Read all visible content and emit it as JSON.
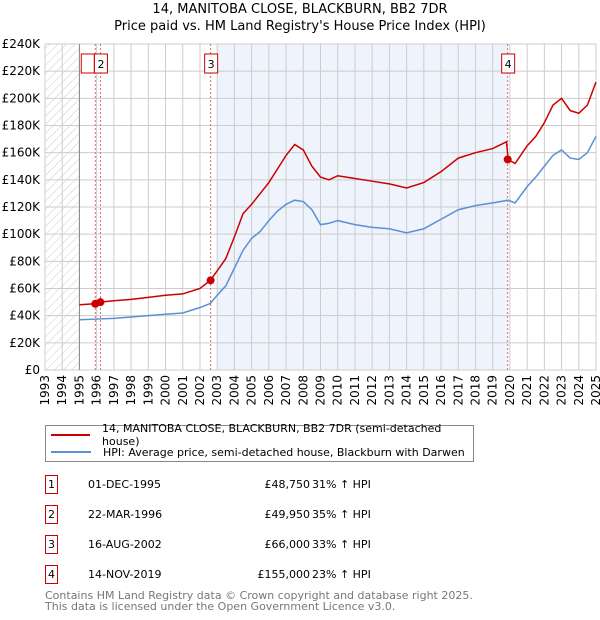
{
  "header": {
    "title": "14, MANITOBA CLOSE, BLACKBURN, BB2 7DR",
    "subtitle": "Price paid vs. HM Land Registry's House Price Index (HPI)"
  },
  "chart_data": {
    "type": "line",
    "title": "14, MANITOBA CLOSE, BLACKBURN, BB2 7DR",
    "subtitle": "Price paid vs. HM Land Registry's House Price Index (HPI)",
    "xlim": [
      1993,
      2025
    ],
    "ylim": [
      0,
      240000
    ],
    "x_ticks": [
      "1993",
      "1994",
      "1995",
      "1996",
      "1997",
      "1998",
      "1999",
      "2000",
      "2001",
      "2002",
      "2003",
      "2004",
      "2005",
      "2006",
      "2007",
      "2008",
      "2009",
      "2010",
      "2011",
      "2012",
      "2013",
      "2014",
      "2015",
      "2016",
      "2017",
      "2018",
      "2019",
      "2020",
      "2021",
      "2022",
      "2023",
      "2024",
      "2025"
    ],
    "y_ticks": [
      "£0",
      "£20K",
      "£40K",
      "£60K",
      "£80K",
      "£100K",
      "£120K",
      "£140K",
      "£160K",
      "£180K",
      "£200K",
      "£220K",
      "£240K"
    ],
    "grid": true,
    "series": [
      {
        "name": "14, MANITOBA CLOSE, BLACKBURN, BB2 7DR (semi-detached house)",
        "color": "#cc0000",
        "x": [
          1995,
          1995.9,
          1996.2,
          1997,
          1998,
          1999,
          2000,
          2001,
          2002,
          2002.6,
          2003,
          2003.5,
          2004,
          2004.5,
          2005,
          2005.5,
          2006,
          2006.5,
          2007,
          2007.5,
          2008,
          2008.5,
          2009,
          2009.5,
          2010,
          2011,
          2012,
          2013,
          2014,
          2015,
          2016,
          2017,
          2018,
          2019,
          2019.8,
          2019.9,
          2020.3,
          2021,
          2021.5,
          2022,
          2022.5,
          2023,
          2023.5,
          2024,
          2024.5,
          2025
        ],
        "y": [
          48000,
          48750,
          49950,
          51000,
          52000,
          53500,
          55000,
          56000,
          60000,
          66000,
          73000,
          82000,
          98000,
          115000,
          122000,
          130000,
          138000,
          148000,
          158000,
          166000,
          162000,
          150000,
          142000,
          140000,
          143000,
          141000,
          139000,
          137000,
          134000,
          138000,
          146000,
          156000,
          160000,
          163000,
          168000,
          155000,
          152000,
          165000,
          172000,
          182000,
          195000,
          200000,
          191000,
          189000,
          195000,
          212000
        ]
      },
      {
        "name": "HPI: Average price, semi-detached house, Blackburn with Darwen",
        "color": "#5b8fd6",
        "x": [
          1995,
          1996,
          1997,
          1998,
          1999,
          2000,
          2001,
          2002,
          2002.6,
          2003,
          2003.5,
          2004,
          2004.5,
          2005,
          2005.5,
          2006,
          2006.5,
          2007,
          2007.5,
          2008,
          2008.5,
          2009,
          2009.5,
          2010,
          2011,
          2012,
          2013,
          2014,
          2015,
          2016,
          2017,
          2018,
          2019,
          2019.9,
          2020.3,
          2021,
          2021.5,
          2022,
          2022.5,
          2023,
          2023.5,
          2024,
          2024.5,
          2025
        ],
        "y": [
          37000,
          37500,
          38000,
          39000,
          40000,
          41000,
          42000,
          46000,
          49000,
          55000,
          62000,
          75000,
          88000,
          97000,
          102000,
          110000,
          117000,
          122000,
          125000,
          124000,
          118000,
          107000,
          108000,
          110000,
          107000,
          105000,
          104000,
          101000,
          104000,
          111000,
          118000,
          121000,
          123000,
          125000,
          123000,
          135000,
          142000,
          150000,
          158000,
          162000,
          156000,
          155000,
          160000,
          172000
        ]
      }
    ],
    "sales": [
      {
        "label": "1",
        "x": 1995.92,
        "y": 48750
      },
      {
        "label": "2",
        "x": 1996.22,
        "y": 49950
      },
      {
        "label": "3",
        "x": 2002.62,
        "y": 66000
      },
      {
        "label": "4",
        "x": 2019.87,
        "y": 155000
      }
    ],
    "legend_placement": "below"
  },
  "legend": {
    "items": [
      {
        "label": "14, MANITOBA CLOSE, BLACKBURN, BB2 7DR (semi-detached house)",
        "color": "#cc0000"
      },
      {
        "label": "HPI: Average price, semi-detached house, Blackburn with Darwen",
        "color": "#5b8fd6"
      }
    ]
  },
  "sales_table": [
    {
      "num": "1",
      "date": "01-DEC-1995",
      "price": "£48,750",
      "hpi": "31% ↑ HPI"
    },
    {
      "num": "2",
      "date": "22-MAR-1996",
      "price": "£49,950",
      "hpi": "35% ↑ HPI"
    },
    {
      "num": "3",
      "date": "16-AUG-2002",
      "price": "£66,000",
      "hpi": "33% ↑ HPI"
    },
    {
      "num": "4",
      "date": "14-NOV-2019",
      "price": "£155,000",
      "hpi": "23% ↑ HPI"
    }
  ],
  "footer": {
    "line1": "Contains HM Land Registry data © Crown copyright and database right 2025.",
    "line2": "This data is licensed under the Open Government Licence v3.0."
  }
}
